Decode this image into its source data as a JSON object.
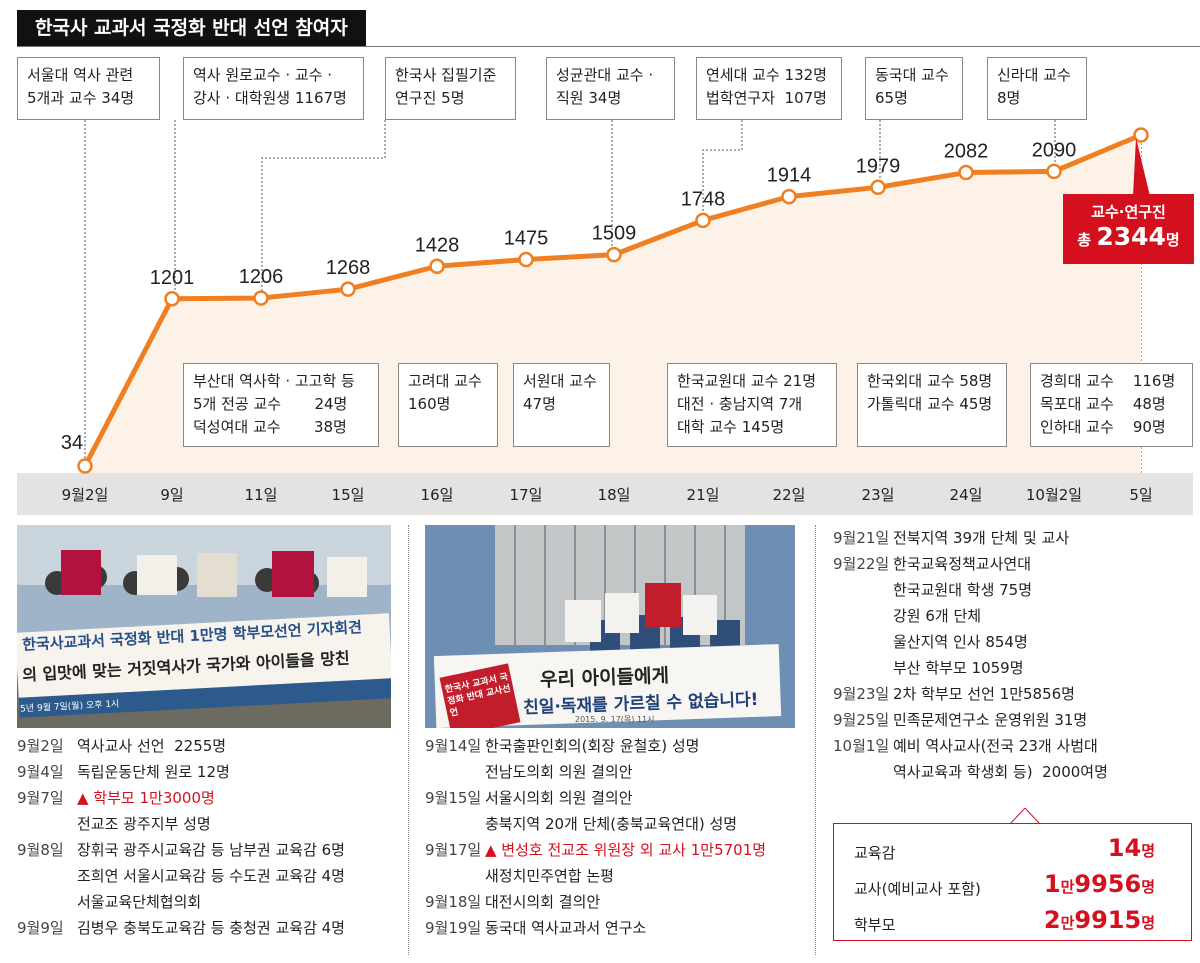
{
  "header": {
    "title": "한국사 교과서 국정화 반대 선언 참여자"
  },
  "chart_data": {
    "type": "area",
    "title": "한국사 교과서 국정화 반대 선언 참여자",
    "categories": [
      "9월2일",
      "9일",
      "11일",
      "15일",
      "16일",
      "17일",
      "18일",
      "21일",
      "22일",
      "23일",
      "24일",
      "10월2일",
      "5일"
    ],
    "values": [
      34,
      1201,
      1206,
      1268,
      1428,
      1475,
      1509,
      1748,
      1914,
      1979,
      2082,
      2090,
      2344
    ],
    "value_labels": [
      "34",
      "1201",
      "1206",
      "1268",
      "1428",
      "1475",
      "1509",
      "1748",
      "1914",
      "1979",
      "2082",
      "2090",
      ""
    ],
    "colors": {
      "line": "#f07f22",
      "fill": "#fdf2e8",
      "accent": "#d5101e"
    }
  },
  "total": {
    "line1": "교수·연구진",
    "prefix": "총 ",
    "value": "2344",
    "unit": "명"
  },
  "top_boxes": [
    {
      "text": "서울대 역사 관련\n5개과 교수 34명"
    },
    {
      "text": "역사 원로교수 · 교수 ·\n강사 · 대학원생 1167명"
    },
    {
      "text": "한국사 집필기준\n연구진 5명"
    },
    {
      "text": "성균관대 교수 ·\n직원 34명"
    },
    {
      "text": "연세대 교수 132명\n법학연구자  107명"
    },
    {
      "text": "동국대 교수\n65명"
    },
    {
      "text": "신라대 교수\n8명"
    }
  ],
  "bottom_boxes": [
    {
      "text": "부산대 역사학 · 고고학 등\n5개 전공 교수       24명\n덕성여대 교수       38명"
    },
    {
      "text": "고려대 교수\n160명"
    },
    {
      "text": "서원대 교수\n47명"
    },
    {
      "text": "한국교원대 교수 21명\n대전 · 충남지역 7개\n대학 교수 145명"
    },
    {
      "text": "한국외대 교수 58명\n가톨릭대 교수 45명"
    },
    {
      "text": "경희대 교수    116명\n목포대 교수    48명\n인하대 교수    90명"
    }
  ],
  "photo1": {
    "banner1": "한국사교과서 국정화 반대 1만명 학부모선언 기자회견",
    "banner2": "의 입맛에 맞는 거짓역사가 국가와 아이들을 망친",
    "caption": "5년 9월 7일(월) 오후 1시"
  },
  "photo2": {
    "banner1": "우리 아이들에게",
    "banner2": "친일·독재를 가르칠 수 없습니다!",
    "sign": "한국사 교과서 국정화 반대 교사선언",
    "caption": "2015. 9. 17(목) 11시"
  },
  "timeline_left": [
    {
      "date": "9월2일",
      "text": "역사교사 선언  2255명",
      "red": false
    },
    {
      "date": "9월4일",
      "text": "독립운동단체 원로 12명",
      "red": false
    },
    {
      "date": "9월7일",
      "text": "▲ 학부모 1만3000명",
      "red": true
    },
    {
      "date": "",
      "text": "전교조 광주지부 성명",
      "red": false
    },
    {
      "date": "9월8일",
      "text": "장휘국 광주시교육감 등 남부권 교육감 6명",
      "red": false
    },
    {
      "date": "",
      "text": "조희연 서울시교육감 등 수도권 교육감 4명",
      "red": false
    },
    {
      "date": "",
      "text": "서울교육단체협의회",
      "red": false
    },
    {
      "date": "9월9일",
      "text": "김병우 충북도교육감 등 충청권 교육감 4명",
      "red": false
    }
  ],
  "timeline_mid": [
    {
      "date": "9월14일",
      "text": "한국출판인회의(회장 윤철호) 성명",
      "red": false
    },
    {
      "date": "",
      "text": "전남도의회 의원 결의안",
      "red": false
    },
    {
      "date": "9월15일",
      "text": "서울시의회 의원 결의안",
      "red": false
    },
    {
      "date": "",
      "text": "충북지역 20개 단체(충북교육연대) 성명",
      "red": false
    },
    {
      "date": "9월17일",
      "text": "▲ 변성호 전교조 위원장 외 교사 1만5701명",
      "red": true
    },
    {
      "date": "",
      "text": "새정치민주연합 논평",
      "red": false
    },
    {
      "date": "9월18일",
      "text": "대전시의회 결의안",
      "red": false
    },
    {
      "date": "9월19일",
      "text": "동국대 역사교과서 연구소",
      "red": false
    }
  ],
  "timeline_right": [
    {
      "date": "9월21일",
      "text": "전북지역 39개 단체 및 교사",
      "red": false
    },
    {
      "date": "9월22일",
      "text": "한국교육정책교사연대",
      "red": false
    },
    {
      "date": "",
      "text": "한국교원대 학생 75명",
      "red": false
    },
    {
      "date": "",
      "text": "강원 6개 단체",
      "red": false
    },
    {
      "date": "",
      "text": "울산지역 인사 854명",
      "red": false
    },
    {
      "date": "",
      "text": "부산 학부모 1059명",
      "red": false
    },
    {
      "date": "9월23일",
      "text": "2차 학부모 선언 1만5856명",
      "red": false
    },
    {
      "date": "9월25일",
      "text": "민족문제연구소 운영위원 31명",
      "red": false
    },
    {
      "date": "10월1일",
      "text": "예비 역사교사(전국 23개 사범대",
      "red": false
    },
    {
      "date": "",
      "text": "역사교육과 학생회 등)  2000여명",
      "red": false
    }
  ],
  "summary": [
    {
      "label": "교육감",
      "pre": "",
      "man": "",
      "val": "14",
      "unit": "명"
    },
    {
      "label": "교사(예비교사 포함)",
      "pre": "1",
      "man": "만",
      "val": "9956",
      "unit": "명"
    },
    {
      "label": "학부모",
      "pre": "2",
      "man": "만",
      "val": "9915",
      "unit": "명"
    }
  ]
}
